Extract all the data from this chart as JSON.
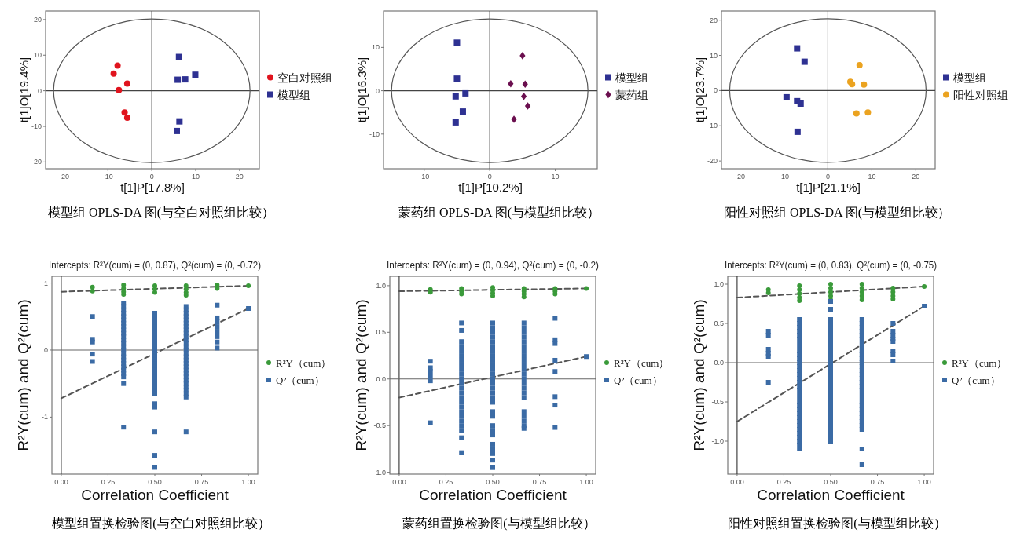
{
  "chart_data": [
    {
      "type": "scatter",
      "xlabel": "t[1]P[17.8%]",
      "ylabel": "t[1]O[19.4%]",
      "xlim": [
        -24.2,
        24.5
      ],
      "ylim": [
        -21.9,
        22.4
      ],
      "xticks": [
        -20,
        -10,
        0,
        10,
        20
      ],
      "yticks": [
        -20,
        -10,
        0,
        10,
        20
      ],
      "legend": "right",
      "annotations": [
        "模型组 OPLS-DA 图(与空白对照组比较）"
      ],
      "ref_lines": [
        {
          "axis": "x",
          "value": 0,
          "color": "#444444"
        },
        {
          "axis": "y",
          "value": 0,
          "color": "#444444"
        }
      ],
      "series": [
        {
          "name": "空白对照组",
          "color": "#e0141e",
          "marker": "circle",
          "x": [
            -8.7,
            -7.8,
            -5.6,
            -7.5,
            -6.2,
            -5.6
          ],
          "values": [
            4.8,
            7.1,
            2.0,
            0.2,
            -6.1,
            -7.6
          ]
        },
        {
          "name": "模型组",
          "color": "#2e3192",
          "marker": "square",
          "x": [
            6.2,
            5.9,
            7.6,
            9.9,
            6.3,
            5.7
          ],
          "values": [
            9.5,
            3.1,
            3.2,
            4.5,
            -8.6,
            -11.3
          ]
        }
      ]
    },
    {
      "type": "scatter",
      "xlabel": "t[1]P[10.2%]",
      "ylabel": "t[1]O[16.3%]",
      "xlim": [
        -16.2,
        16.4
      ],
      "ylim": [
        -18,
        18.4
      ],
      "xticks": [
        -10,
        0,
        10
      ],
      "yticks": [
        -10,
        0,
        10
      ],
      "legend": "right",
      "annotations": [
        "蒙药组 OPLS-DA 图(与模型组比较）"
      ],
      "ref_lines": [
        {
          "axis": "x",
          "value": 0,
          "color": "#444444"
        },
        {
          "axis": "y",
          "value": 0,
          "color": "#444444"
        }
      ],
      "series": [
        {
          "name": "模型组",
          "color": "#2e3192",
          "marker": "square",
          "x": [
            -5,
            -5,
            -3.7,
            -5.2,
            -4.1,
            -5.2
          ],
          "values": [
            11.1,
            2.8,
            -0.6,
            -1.3,
            -4.8,
            -7.3
          ]
        },
        {
          "name": "蒙药组",
          "color": "#6b0f4f",
          "marker": "diamond",
          "x": [
            5,
            3.2,
            5.4,
            5.2,
            5.8,
            3.7
          ],
          "values": [
            8.1,
            1.6,
            1.5,
            -1.3,
            -3.5,
            -6.6
          ]
        }
      ]
    },
    {
      "type": "scatter",
      "xlabel": "t[1]P[21.1%]",
      "ylabel": "t[1]O[23.7%]",
      "xlim": [
        -24.2,
        24.4
      ],
      "ylim": [
        -22.2,
        22.6
      ],
      "xticks": [
        -20,
        -10,
        0,
        10,
        20
      ],
      "yticks": [
        -20,
        -10,
        0,
        10,
        20
      ],
      "legend": "right",
      "annotations": [
        "阳性对照组 OPLS-DA 图(与模型组比较）"
      ],
      "ref_lines": [
        {
          "axis": "x",
          "value": 0,
          "color": "#444444"
        },
        {
          "axis": "y",
          "value": 0,
          "color": "#444444"
        }
      ],
      "series": [
        {
          "name": "模型组",
          "color": "#2e3192",
          "marker": "square",
          "x": [
            -7,
            -5.3,
            -9.4,
            -7,
            -6.2,
            -6.9
          ],
          "values": [
            12,
            8.2,
            -1.9,
            -3,
            -3.7,
            -11.7
          ]
        },
        {
          "name": "阳性对照组",
          "color": "#eba320",
          "marker": "circle",
          "x": [
            7.2,
            5.1,
            5.5,
            8.2,
            6.5,
            9.1
          ],
          "values": [
            7.2,
            2.5,
            1.8,
            1.7,
            -6.5,
            -6.2
          ]
        }
      ]
    },
    {
      "type": "scatter",
      "title": "Intercepts: R²Y(cum) = (0, 0.87), Q²(cum) = (0, -0.72)",
      "xlabel": "Correlation Coefficient",
      "ylabel": "R²Y(cum) and Q²(cum)",
      "xlim": [
        -0.05,
        1.05
      ],
      "ylim": [
        -1.85,
        1.1
      ],
      "xticks": [
        {
          "value": 0,
          "label": "0.00"
        },
        {
          "value": 0.25,
          "label": "0.25"
        },
        {
          "value": 0.5,
          "label": "0.50"
        },
        {
          "value": 0.75,
          "label": "0.75"
        },
        {
          "value": 1,
          "label": "1.00"
        }
      ],
      "yticks": [
        -1,
        0,
        1
      ],
      "legend": "right",
      "annotations": [
        "模型组置换检验图(与空白对照组比较）"
      ],
      "ref_lines": [
        {
          "axis": "x",
          "value": 0,
          "color": "#333333"
        },
        {
          "axis": "y",
          "value": 0,
          "color": "#666666"
        }
      ],
      "series": [
        {
          "name": "R²Y（cum）",
          "color": "#3a9a3a",
          "marker": "circle",
          "x": [
            0.167,
            0.167,
            0.333,
            0.333,
            0.333,
            0.333,
            0.5,
            0.5,
            0.5,
            0.667,
            0.667,
            0.667,
            0.667,
            0.833,
            0.833,
            1
          ],
          "values": [
            0.94,
            0.88,
            0.97,
            0.92,
            0.87,
            0.83,
            0.96,
            0.91,
            0.86,
            0.96,
            0.91,
            0.86,
            0.82,
            0.97,
            0.92,
            0.96
          ]
        },
        {
          "name": "Q²（cum）",
          "color": "#3b6ba5",
          "marker": "square",
          "x": [
            0.167,
            0.167,
            0.167,
            0.167,
            0.167,
            0.333,
            0.333,
            0.333,
            0.333,
            0.333,
            0.333,
            0.333,
            0.333,
            0.333,
            0.333,
            0.333,
            0.333,
            0.333,
            0.333,
            0.333,
            0.333,
            0.333,
            0.333,
            0.333,
            0.333,
            0.333,
            0.333,
            0.333,
            0.333,
            0.333,
            0.5,
            0.5,
            0.5,
            0.5,
            0.5,
            0.5,
            0.5,
            0.5,
            0.5,
            0.5,
            0.5,
            0.5,
            0.5,
            0.5,
            0.5,
            0.5,
            0.5,
            0.5,
            0.5,
            0.5,
            0.5,
            0.5,
            0.5,
            0.5,
            0.5,
            0.5,
            0.5,
            0.5,
            0.5,
            0.5,
            0.667,
            0.667,
            0.667,
            0.667,
            0.667,
            0.667,
            0.667,
            0.667,
            0.667,
            0.667,
            0.667,
            0.667,
            0.667,
            0.667,
            0.667,
            0.667,
            0.667,
            0.667,
            0.667,
            0.667,
            0.667,
            0.667,
            0.667,
            0.667,
            0.667,
            0.667,
            0.667,
            0.667,
            0.667,
            0.833,
            0.833,
            0.833,
            0.833,
            0.833,
            0.833,
            0.833,
            0.833,
            1
          ],
          "values": [
            0.5,
            0.16,
            0.12,
            -0.06,
            -0.17,
            0.7,
            0.65,
            0.6,
            0.55,
            0.5,
            0.45,
            0.4,
            0.35,
            0.3,
            0.25,
            0.2,
            0.15,
            0.1,
            0.05,
            0,
            -0.05,
            -0.1,
            -0.15,
            -0.2,
            -0.25,
            -0.3,
            -0.35,
            -0.4,
            -0.5,
            -1.15,
            0.55,
            0.5,
            0.45,
            0.4,
            0.35,
            0.3,
            0.25,
            0.2,
            0.15,
            0.1,
            0.05,
            0,
            -0.05,
            -0.1,
            -0.15,
            -0.2,
            -0.25,
            -0.3,
            -0.35,
            -0.4,
            -0.45,
            -0.5,
            -0.55,
            -0.6,
            -0.65,
            -0.8,
            -0.85,
            -1.22,
            -1.57,
            -1.75,
            0.65,
            0.6,
            0.55,
            0.5,
            0.45,
            0.4,
            0.35,
            0.3,
            0.25,
            0.2,
            0.15,
            0.1,
            0.05,
            0,
            -0.05,
            -0.1,
            -0.15,
            -0.2,
            -0.25,
            -0.3,
            -0.35,
            -0.4,
            -0.45,
            -0.5,
            -0.55,
            -0.6,
            -0.65,
            -0.7,
            -1.22,
            0.67,
            0.48,
            0.42,
            0.35,
            0.28,
            0.2,
            0.12,
            0.03,
            0.62
          ]
        },
        {
          "type": "line",
          "color": "#555555",
          "line_style": "dashed",
          "x": [
            0,
            1
          ],
          "values": [
            0.87,
            0.96
          ]
        },
        {
          "type": "line",
          "color": "#555555",
          "line_style": "dashed",
          "x": [
            0,
            1
          ],
          "values": [
            -0.72,
            0.62
          ]
        }
      ]
    },
    {
      "type": "scatter",
      "title": "Intercepts: R²Y(cum) = (0, 0.94), Q²(cum) = (0, -0.2)",
      "xlabel": "Correlation Coefficient",
      "ylabel": "R²Y(cum) and Q²(cum)",
      "xlim": [
        -0.05,
        1.05
      ],
      "ylim": [
        -1.02,
        1.1
      ],
      "xticks": [
        {
          "value": 0,
          "label": "0.00"
        },
        {
          "value": 0.25,
          "label": "0.25"
        },
        {
          "value": 0.5,
          "label": "0.50"
        },
        {
          "value": 0.75,
          "label": "0.75"
        },
        {
          "value": 1,
          "label": "1.00"
        }
      ],
      "yticks": [
        {
          "value": -1,
          "label": "-1.0"
        },
        {
          "value": -0.5,
          "label": "-0.5"
        },
        {
          "value": 0,
          "label": "0.0"
        },
        {
          "value": 0.5,
          "label": "0.5"
        },
        {
          "value": 1,
          "label": "1.0"
        }
      ],
      "legend": "right",
      "annotations": [
        "蒙药组置换检验图(与模型组比较）"
      ],
      "ref_lines": [
        {
          "axis": "x",
          "value": 0,
          "color": "#333333"
        },
        {
          "axis": "y",
          "value": 0,
          "color": "#666666"
        }
      ],
      "series": [
        {
          "name": "R²Y（cum）",
          "color": "#3a9a3a",
          "marker": "circle",
          "x": [
            0.167,
            0.167,
            0.333,
            0.333,
            0.333,
            0.5,
            0.5,
            0.5,
            0.5,
            0.667,
            0.667,
            0.667,
            0.667,
            0.833,
            0.833,
            0.833,
            1
          ],
          "values": [
            0.96,
            0.93,
            0.97,
            0.94,
            0.91,
            0.98,
            0.95,
            0.92,
            0.89,
            0.97,
            0.94,
            0.91,
            0.88,
            0.97,
            0.94,
            0.91,
            0.97
          ]
        },
        {
          "name": "Q²（cum）",
          "color": "#3b6ba5",
          "marker": "square",
          "x": [
            0.167,
            0.167,
            0.167,
            0.167,
            0.167,
            0.167,
            0.333,
            0.333,
            0.333,
            0.333,
            0.333,
            0.333,
            0.333,
            0.333,
            0.333,
            0.333,
            0.333,
            0.333,
            0.333,
            0.333,
            0.333,
            0.333,
            0.333,
            0.333,
            0.333,
            0.333,
            0.333,
            0.333,
            0.333,
            0.333,
            0.5,
            0.5,
            0.5,
            0.5,
            0.5,
            0.5,
            0.5,
            0.5,
            0.5,
            0.5,
            0.5,
            0.5,
            0.5,
            0.5,
            0.5,
            0.5,
            0.5,
            0.5,
            0.5,
            0.5,
            0.5,
            0.5,
            0.5,
            0.5,
            0.5,
            0.5,
            0.5,
            0.5,
            0.667,
            0.667,
            0.667,
            0.667,
            0.667,
            0.667,
            0.667,
            0.667,
            0.667,
            0.667,
            0.667,
            0.667,
            0.667,
            0.667,
            0.667,
            0.667,
            0.667,
            0.667,
            0.667,
            0.667,
            0.667,
            0.667,
            0.833,
            0.833,
            0.833,
            0.833,
            0.833,
            0.833,
            0.833,
            0.833,
            1
          ],
          "values": [
            0.19,
            0.12,
            0.08,
            0.03,
            -0.02,
            -0.47,
            0.6,
            0.52,
            0.4,
            0.35,
            0.3,
            0.25,
            0.2,
            0.15,
            0.1,
            0.05,
            0,
            -0.05,
            -0.1,
            -0.15,
            -0.2,
            -0.25,
            -0.3,
            -0.35,
            -0.4,
            -0.45,
            -0.5,
            -0.55,
            -0.63,
            -0.79,
            0.6,
            0.55,
            0.5,
            0.45,
            0.4,
            0.35,
            0.3,
            0.25,
            0.2,
            0.15,
            0.1,
            0.05,
            0,
            -0.05,
            -0.1,
            -0.15,
            -0.2,
            -0.25,
            -0.35,
            -0.4,
            -0.5,
            -0.55,
            -0.6,
            -0.7,
            -0.75,
            -0.8,
            -0.87,
            -0.95,
            0.6,
            0.55,
            0.5,
            0.45,
            0.4,
            0.35,
            0.3,
            0.25,
            0.2,
            0.15,
            0.1,
            0.05,
            0,
            -0.05,
            -0.1,
            -0.15,
            -0.2,
            -0.35,
            -0.4,
            -0.45,
            -0.5,
            -0.53,
            0.65,
            0.42,
            0.38,
            0.2,
            0.08,
            -0.19,
            -0.28,
            -0.52,
            0.24
          ]
        },
        {
          "type": "line",
          "color": "#555555",
          "line_style": "dashed",
          "x": [
            0,
            1
          ],
          "values": [
            0.94,
            0.97
          ]
        },
        {
          "type": "line",
          "color": "#555555",
          "line_style": "dashed",
          "x": [
            0,
            1
          ],
          "values": [
            -0.2,
            0.24
          ]
        }
      ]
    },
    {
      "type": "scatter",
      "title": "Intercepts: R²Y(cum) = (0, 0.83), Q²(cum) = (0, -0.75)",
      "xlabel": "Correlation Coefficient",
      "ylabel": "R²Y(cum) and Q²(cum)",
      "xlim": [
        -0.05,
        1.05
      ],
      "ylim": [
        -1.42,
        1.1
      ],
      "xticks": [
        {
          "value": 0,
          "label": "0.00"
        },
        {
          "value": 0.25,
          "label": "0.25"
        },
        {
          "value": 0.5,
          "label": "0.50"
        },
        {
          "value": 0.75,
          "label": "0.75"
        },
        {
          "value": 1,
          "label": "1.00"
        }
      ],
      "yticks": [
        {
          "value": -1,
          "label": "-1.0"
        },
        {
          "value": -0.5,
          "label": "-0.5"
        },
        {
          "value": 0,
          "label": "0.0"
        },
        {
          "value": 0.5,
          "label": "0.5"
        },
        {
          "value": 1,
          "label": "1.0"
        }
      ],
      "legend": "right",
      "annotations": [
        "阳性对照组置换检验图(与模型组比较）"
      ],
      "ref_lines": [
        {
          "axis": "x",
          "value": 0,
          "color": "#333333"
        },
        {
          "axis": "y",
          "value": 0,
          "color": "#666666"
        }
      ],
      "series": [
        {
          "name": "R²Y（cum）",
          "color": "#3a9a3a",
          "marker": "circle",
          "x": [
            0.167,
            0.167,
            0.333,
            0.333,
            0.333,
            0.333,
            0.333,
            0.5,
            0.5,
            0.5,
            0.5,
            0.5,
            0.667,
            0.667,
            0.667,
            0.667,
            0.667,
            0.833,
            0.833,
            0.833,
            0.833,
            1
          ],
          "values": [
            0.93,
            0.89,
            0.98,
            0.93,
            0.88,
            0.83,
            0.79,
            1.0,
            0.95,
            0.9,
            0.85,
            0.8,
            1.0,
            0.95,
            0.9,
            0.85,
            0.8,
            0.95,
            0.9,
            0.85,
            0.81,
            0.97
          ]
        },
        {
          "name": "Q²（cum）",
          "color": "#3b6ba5",
          "marker": "square",
          "x": [
            0.167,
            0.167,
            0.167,
            0.167,
            0.167,
            0.167,
            0.333,
            0.333,
            0.333,
            0.333,
            0.333,
            0.333,
            0.333,
            0.333,
            0.333,
            0.333,
            0.333,
            0.333,
            0.333,
            0.333,
            0.333,
            0.333,
            0.333,
            0.333,
            0.333,
            0.333,
            0.333,
            0.333,
            0.333,
            0.333,
            0.333,
            0.333,
            0.333,
            0.333,
            0.333,
            0.333,
            0.333,
            0.333,
            0.333,
            0.333,
            0.5,
            0.5,
            0.5,
            0.5,
            0.5,
            0.5,
            0.5,
            0.5,
            0.5,
            0.5,
            0.5,
            0.5,
            0.5,
            0.5,
            0.5,
            0.5,
            0.5,
            0.5,
            0.5,
            0.5,
            0.5,
            0.5,
            0.5,
            0.5,
            0.5,
            0.5,
            0.5,
            0.5,
            0.5,
            0.5,
            0.5,
            0.5,
            0.5,
            0.5,
            0.667,
            0.667,
            0.667,
            0.667,
            0.667,
            0.667,
            0.667,
            0.667,
            0.667,
            0.667,
            0.667,
            0.667,
            0.667,
            0.667,
            0.667,
            0.667,
            0.667,
            0.667,
            0.667,
            0.667,
            0.667,
            0.667,
            0.667,
            0.667,
            0.667,
            0.667,
            0.667,
            0.667,
            0.667,
            0.667,
            0.667,
            0.833,
            0.833,
            0.833,
            0.833,
            0.833,
            0.833,
            0.833,
            0.833,
            1
          ],
          "values": [
            0.4,
            0.35,
            0.17,
            0.12,
            0.08,
            -0.25,
            0.55,
            0.5,
            0.45,
            0.4,
            0.35,
            0.3,
            0.25,
            0.2,
            0.15,
            0.1,
            0.05,
            0,
            -0.05,
            -0.1,
            -0.15,
            -0.2,
            -0.25,
            -0.3,
            -0.35,
            -0.4,
            -0.45,
            -0.5,
            -0.55,
            -0.6,
            -0.65,
            -0.7,
            -0.75,
            -0.8,
            -0.85,
            -0.9,
            -0.95,
            -1,
            -1.05,
            -1.1,
            0.78,
            0.68,
            0.55,
            0.5,
            0.45,
            0.4,
            0.35,
            0.3,
            0.25,
            0.2,
            0.15,
            0.1,
            0.05,
            0,
            -0.05,
            -0.1,
            -0.15,
            -0.2,
            -0.25,
            -0.3,
            -0.35,
            -0.4,
            -0.45,
            -0.5,
            -0.55,
            -0.6,
            -0.65,
            -0.7,
            -0.75,
            -0.8,
            -0.85,
            -0.9,
            -0.95,
            -1,
            0.55,
            0.5,
            0.45,
            0.4,
            0.35,
            0.3,
            0.25,
            0.2,
            0.15,
            0.1,
            0.05,
            0,
            -0.05,
            -0.1,
            -0.15,
            -0.2,
            -0.25,
            -0.3,
            -0.35,
            -0.4,
            -0.45,
            -0.5,
            -0.55,
            -0.6,
            -0.65,
            -0.7,
            -0.75,
            -0.8,
            -0.85,
            -1.1,
            -1.3,
            0.5,
            0.4,
            0.35,
            0.3,
            0.27,
            0.15,
            0.1,
            0.02,
            0.72
          ]
        },
        {
          "type": "line",
          "color": "#555555",
          "line_style": "dashed",
          "x": [
            0,
            1
          ],
          "values": [
            0.83,
            0.97
          ]
        },
        {
          "type": "line",
          "color": "#555555",
          "line_style": "dashed",
          "x": [
            0,
            1
          ],
          "values": [
            -0.75,
            0.72
          ]
        }
      ]
    }
  ]
}
